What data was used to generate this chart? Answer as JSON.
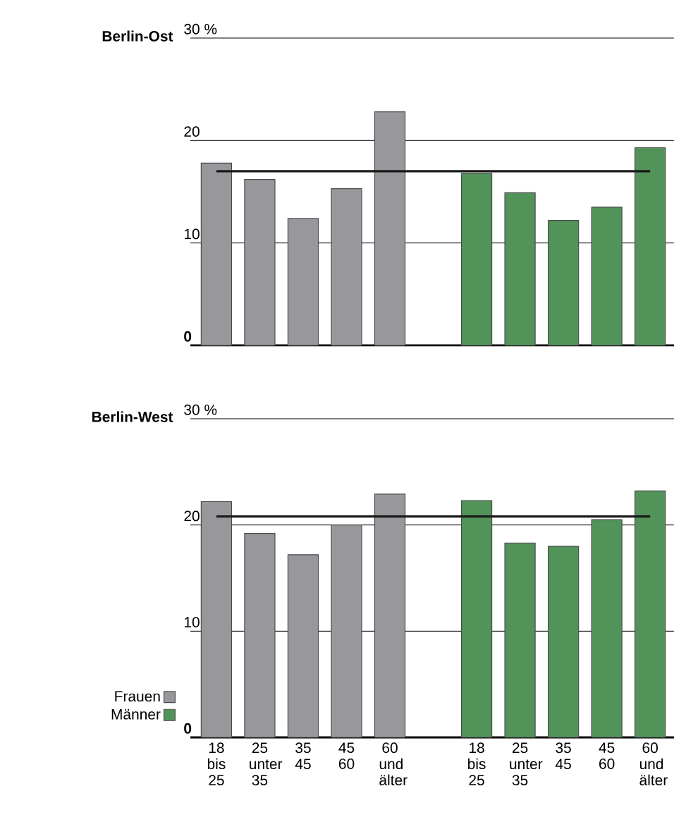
{
  "chart_data": [
    {
      "type": "bar",
      "title": "Berlin-Ost",
      "categories": [
        null,
        null,
        null,
        null,
        null,
        null,
        null,
        null,
        null,
        null,
        null
      ],
      "series": [
        {
          "color": "#98979c",
          "values": [
            17.8,
            16.2,
            12.4,
            15.3,
            22.8,
            null,
            null,
            null,
            null,
            null,
            null
          ]
        },
        {
          "color": "#52935a",
          "values": [
            null,
            null,
            null,
            null,
            null,
            null,
            16.8,
            14.9,
            12.2,
            13.5,
            19.3
          ]
        }
      ],
      "ylim": [
        0,
        30
      ],
      "yticks": [
        0,
        10,
        20,
        {
          "value": 30,
          "label": "30 %"
        }
      ],
      "grid": "y",
      "tick_labels": "y",
      "ref_lines": [
        {
          "axis": "y",
          "value": 17.0,
          "color": "#1a1a1a"
        }
      ]
    },
    {
      "type": "bar",
      "title": "Berlin-West",
      "categories": [
        "18 bis 25",
        "25 unter 35",
        "35 45",
        "45 60",
        "60 und älter",
        null,
        "18 bis 25",
        "25 unter 35",
        "35 45",
        "45 60",
        "60 und älter"
      ],
      "series": [
        {
          "name": "Frauen",
          "color": "#98979c",
          "values": [
            22.2,
            19.2,
            17.2,
            20.0,
            22.9,
            null,
            null,
            null,
            null,
            null,
            null
          ]
        },
        {
          "name": "Männer",
          "color": "#52935a",
          "values": [
            null,
            null,
            null,
            null,
            null,
            null,
            22.3,
            18.3,
            18.0,
            20.5,
            23.2
          ]
        }
      ],
      "ylim": [
        0,
        30
      ],
      "yticks": [
        0,
        10,
        20,
        {
          "value": 30,
          "label": "30 %"
        }
      ],
      "grid": "y",
      "legend": "bottom left",
      "ref_lines": [
        {
          "axis": "y",
          "value": 20.8,
          "color": "#1a1a1a"
        }
      ]
    }
  ]
}
